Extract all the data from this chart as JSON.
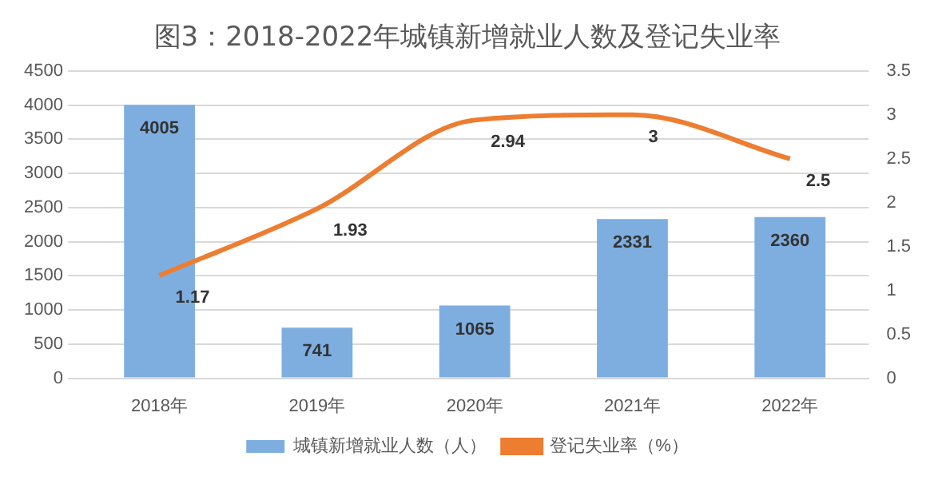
{
  "chart_data": {
    "type": "bar",
    "title": "图3：2018-2022年城镇新增就业人数及登记失业率",
    "categories": [
      "2018年",
      "2019年",
      "2020年",
      "2021年",
      "2022年"
    ],
    "series": [
      {
        "name": "城镇新增就业人数（人）",
        "color": "#7eaee0",
        "values": [
          4005,
          741,
          1065,
          2331,
          2360
        ]
      },
      {
        "name": "登记失业率（%）",
        "type": "line",
        "axis": "y2",
        "color": "#ed7d31",
        "values": [
          1.17,
          1.93,
          2.94,
          3,
          2.5
        ]
      }
    ],
    "ylim": [
      0,
      4500
    ],
    "yticks": [
      0,
      500,
      1000,
      1500,
      2000,
      2500,
      3000,
      3500,
      4000,
      4500
    ],
    "y2lim": [
      0,
      3.5
    ],
    "y2ticks": [
      0,
      0.5,
      1,
      1.5,
      2,
      2.5,
      3,
      3.5
    ],
    "grid": "y",
    "legend": "bottom",
    "data_labels": true,
    "marker": "none"
  }
}
